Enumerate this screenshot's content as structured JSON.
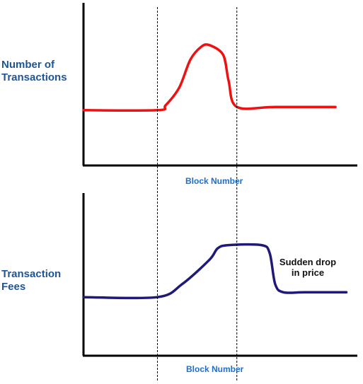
{
  "colors": {
    "top_series": "#ee1111",
    "bottom_series": "#1f1a78",
    "axis": "#000000",
    "marker_line": "#000000",
    "ylabel_text": "#1f5596",
    "xlabel_text": "#1d6fcb"
  },
  "chart_data": [
    {
      "type": "line",
      "title": "",
      "ylabel": [
        "Number of",
        "Transactions"
      ],
      "xlabel": "Block Number",
      "xlim": [
        0,
        10
      ],
      "ylim": [
        0,
        10
      ],
      "ticks_shown": false,
      "grid": false,
      "vertical_markers": [
        2.7,
        5.6
      ],
      "series": [
        {
          "color": "#ee1111",
          "x": [
            0,
            2.7,
            3.0,
            3.5,
            3.9,
            4.3,
            4.6,
            5.1,
            5.3,
            5.6,
            7.0,
            9.2
          ],
          "y": [
            3.4,
            3.4,
            3.7,
            4.8,
            6.5,
            7.3,
            7.4,
            6.8,
            5.2,
            3.6,
            3.6,
            3.6
          ]
        }
      ]
    },
    {
      "type": "line",
      "title": "",
      "ylabel": [
        "Transaction",
        "Fees"
      ],
      "xlabel": "Block Number",
      "xlim": [
        0,
        10
      ],
      "ylim": [
        0,
        10
      ],
      "ticks_shown": false,
      "grid": false,
      "vertical_markers": [
        2.7,
        5.6
      ],
      "annotation": [
        "Sudden drop",
        "in price"
      ],
      "series": [
        {
          "color": "#1f1a78",
          "x": [
            0,
            2.7,
            3.6,
            4.6,
            4.9,
            5.3,
            6.5,
            6.8,
            7.0,
            7.3,
            8.1,
            9.6
          ],
          "y": [
            3.6,
            3.6,
            4.4,
            5.9,
            6.6,
            6.8,
            6.8,
            6.3,
            4.4,
            3.9,
            3.9,
            3.9
          ]
        }
      ]
    }
  ]
}
